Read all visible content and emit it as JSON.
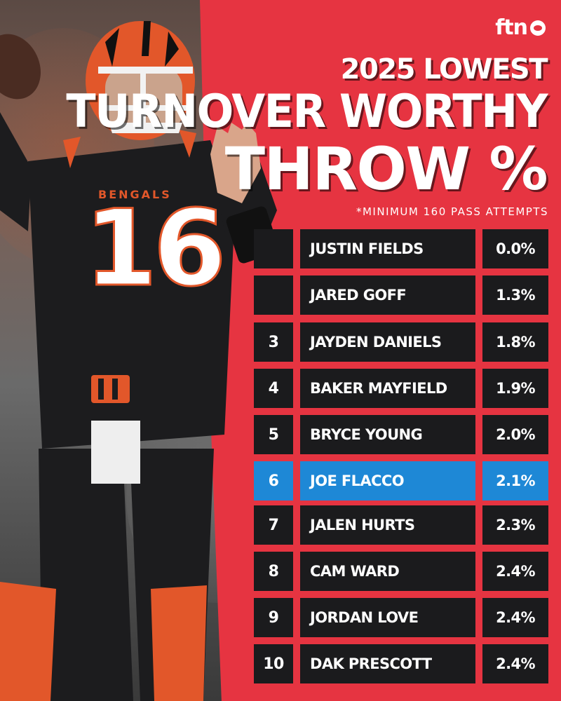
{
  "brand": {
    "logo_text": "ftn"
  },
  "header": {
    "line1": "2025 LOWEST",
    "line2": "TURNOVER WORTHY",
    "line3": "THROW %",
    "note": "*MINIMUM 160 PASS ATTEMPTS"
  },
  "jersey": {
    "team": "BENGALS",
    "number": "16"
  },
  "colors": {
    "background_red": "#e43340",
    "row_dark": "#1b1b1d",
    "highlight_blue": "#1e88d6"
  },
  "rows": [
    {
      "rank": "",
      "name": "JUSTIN FIELDS",
      "pct": "0.0%"
    },
    {
      "rank": "",
      "name": "JARED GOFF",
      "pct": "1.3%"
    },
    {
      "rank": "3",
      "name": "JAYDEN DANIELS",
      "pct": "1.8%"
    },
    {
      "rank": "4",
      "name": "BAKER MAYFIELD",
      "pct": "1.9%"
    },
    {
      "rank": "5",
      "name": "BRYCE YOUNG",
      "pct": "2.0%"
    },
    {
      "rank": "6",
      "name": "JOE FLACCO",
      "pct": "2.1%",
      "highlighted": true
    },
    {
      "rank": "7",
      "name": "JALEN HURTS",
      "pct": "2.3%"
    },
    {
      "rank": "8",
      "name": "CAM WARD",
      "pct": "2.4%"
    },
    {
      "rank": "9",
      "name": "JORDAN LOVE",
      "pct": "2.4%"
    },
    {
      "rank": "10",
      "name": "DAK PRESCOTT",
      "pct": "2.4%"
    }
  ]
}
